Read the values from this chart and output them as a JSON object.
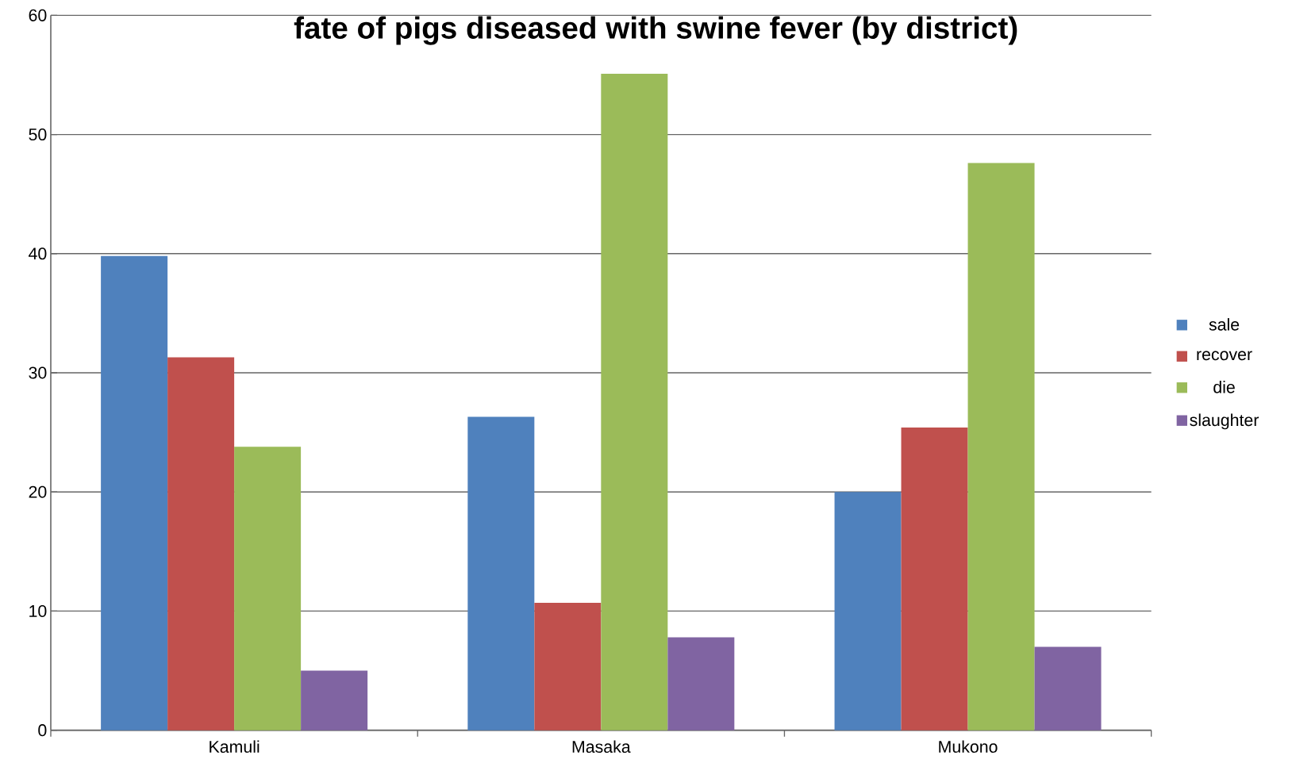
{
  "chart_data": {
    "type": "bar",
    "title": "fate of pigs diseased with swine fever (by district)",
    "categories": [
      "Kamuli",
      "Masaka",
      "Mukono"
    ],
    "series": [
      {
        "name": "sale",
        "color": "#4f81bd",
        "values": [
          39.8,
          26.3,
          20.0
        ]
      },
      {
        "name": "recover",
        "color": "#c0504d",
        "values": [
          31.3,
          10.7,
          25.4
        ]
      },
      {
        "name": "die",
        "color": "#9bbb59",
        "values": [
          23.8,
          55.1,
          47.6
        ]
      },
      {
        "name": "slaughter",
        "color": "#8064a2",
        "values": [
          5.0,
          7.8,
          7.0
        ]
      }
    ],
    "ylim": [
      0,
      60
    ],
    "yticks": [
      0,
      10,
      20,
      30,
      40,
      50,
      60
    ],
    "grid": "y",
    "legend": "right"
  }
}
